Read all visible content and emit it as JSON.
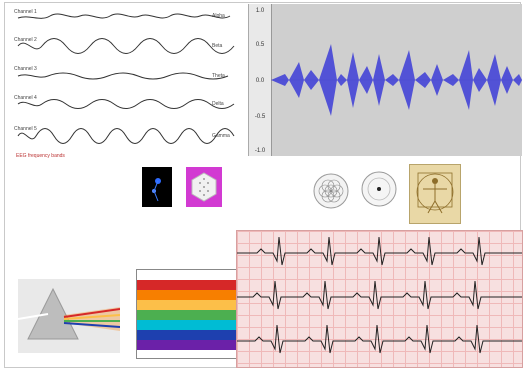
{
  "eeg": {
    "channels": [
      {
        "name": "Channel 1",
        "right_label": "Alpha"
      },
      {
        "name": "Channel 2",
        "right_label": "Beta"
      },
      {
        "name": "Channel 3",
        "right_label": "Theta"
      },
      {
        "name": "Channel 4",
        "right_label": "Delta"
      },
      {
        "name": "Channel 5",
        "right_label": "Gamma"
      }
    ],
    "caption": "EEG frequency bands"
  },
  "waveform": {
    "axis_labels": [
      "1.0",
      "0.5",
      "0.0",
      "-0.5",
      "-1.0"
    ]
  },
  "neuro": {
    "caption": ""
  },
  "middle": {
    "caption": "",
    "bottom_caption": ""
  },
  "slide": {
    "title": "",
    "text": ""
  },
  "spectrum": {
    "headers": [
      "",
      "",
      ""
    ],
    "rows": [
      {
        "color": "#d62828",
        "label": "",
        "v1": "",
        "v2": ""
      },
      {
        "color": "#f77f00",
        "label": "",
        "v1": "",
        "v2": ""
      },
      {
        "color": "#fcbf49",
        "label": "",
        "v1": "",
        "v2": ""
      },
      {
        "color": "#4caf50",
        "label": "",
        "v1": "",
        "v2": ""
      },
      {
        "color": "#00bcd4",
        "label": "",
        "v1": "",
        "v2": ""
      },
      {
        "color": "#1e40af",
        "label": "",
        "v1": "",
        "v2": ""
      },
      {
        "color": "#6b21a8",
        "label": "",
        "v1": "",
        "v2": ""
      }
    ]
  }
}
